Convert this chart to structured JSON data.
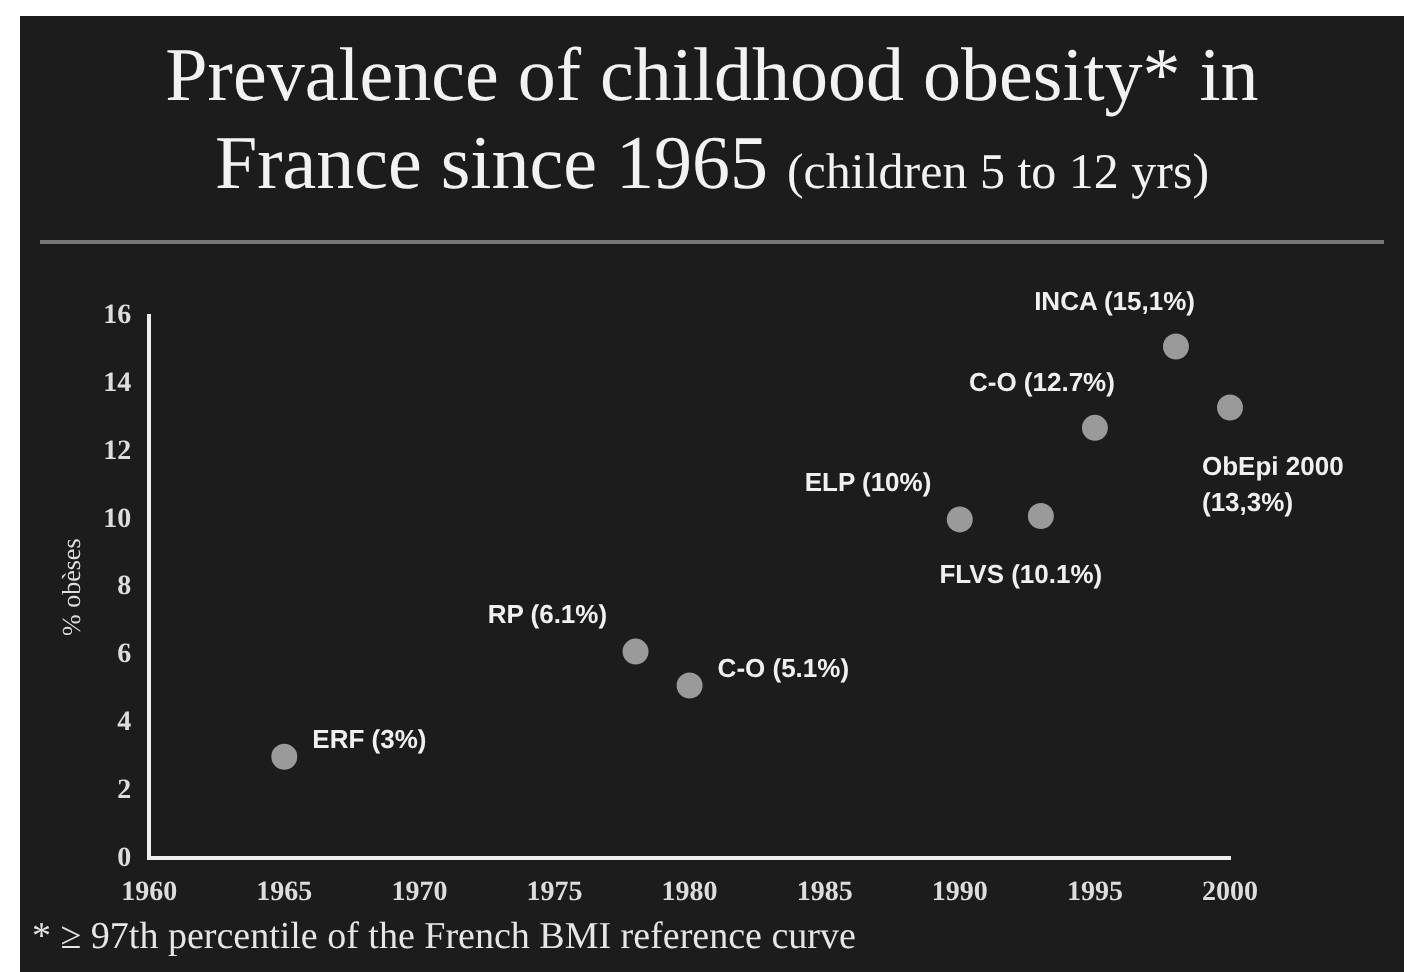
{
  "chart_data": {
    "type": "scatter",
    "title": "Prevalence of childhood obesity* in France since 1965",
    "subtitle": "(children 5 to 12 yrs)",
    "ylabel": "% obèses",
    "x": [
      1965,
      1978,
      1980,
      1990,
      1993,
      1995,
      1998,
      2000
    ],
    "series": [
      {
        "color": "#9a9a9a",
        "values": [
          3,
          6.1,
          5.1,
          10,
          10.1,
          12.7,
          15.1,
          13.3
        ],
        "value_labels": [
          "ERF (3%)",
          "RP (6.1%)",
          "C-O (5.1%)",
          "ELP (10%)",
          "FLVS (10.1%)",
          "C-O (12.7%)",
          "INCA (15,1%)",
          "ObEpi 2000\n(13,3%)"
        ]
      }
    ],
    "xlim": [
      1960,
      2000
    ],
    "xticks": [
      1960,
      1965,
      1970,
      1975,
      1980,
      1985,
      1990,
      1995,
      2000
    ],
    "ylim": [
      0,
      16
    ],
    "yticks": [
      0,
      2,
      4,
      6,
      8,
      10,
      12,
      14,
      16
    ],
    "marker": "circle",
    "grid": false,
    "legend": false,
    "annotations": [
      "* ≥ 97th percentile of the French BMI reference curve"
    ]
  }
}
